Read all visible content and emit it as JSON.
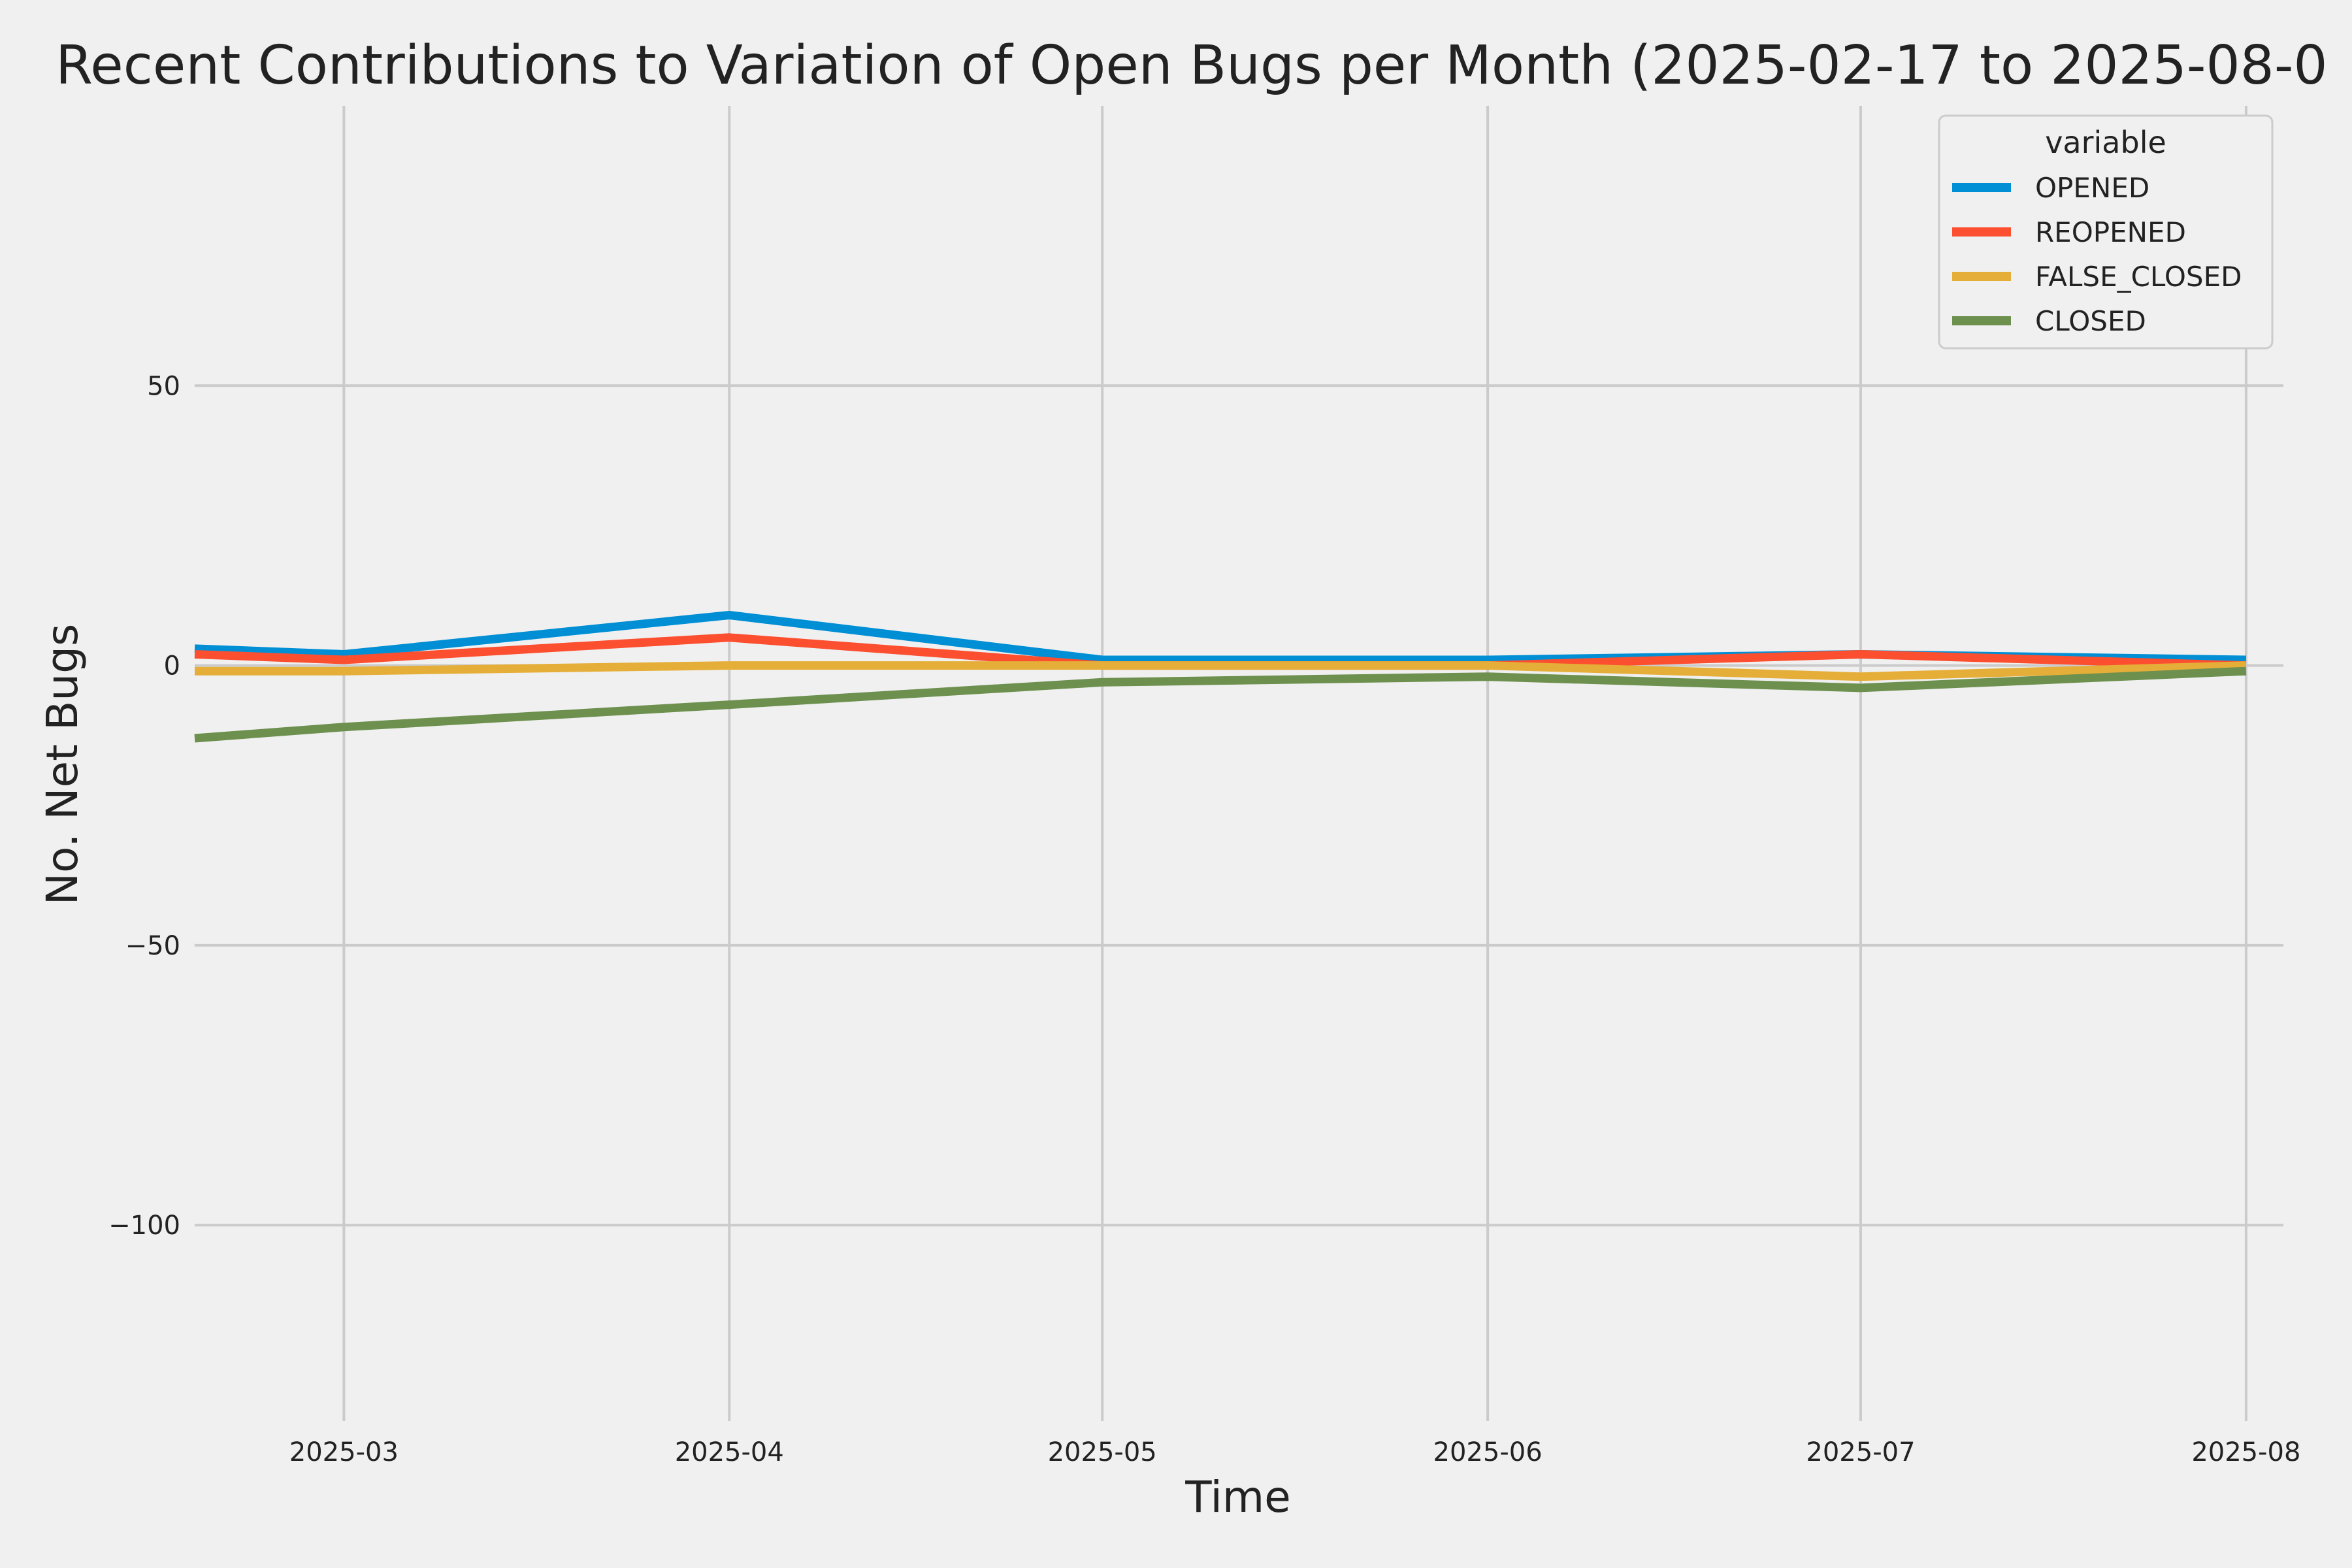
{
  "chart_data": {
    "type": "line",
    "title": "Recent Contributions to Variation of Open Bugs per Month (2025-02-17 to 2025-08-0",
    "xlabel": "Time",
    "ylabel": "No. Net Bugs",
    "x": [
      "2025-02-17",
      "2025-03-01",
      "2025-04-01",
      "2025-05-01",
      "2025-06-01",
      "2025-07-01",
      "2025-08-01"
    ],
    "xlim": [
      "2025-02-17",
      "2025-08-04"
    ],
    "ylim": [
      -135,
      100
    ],
    "x_ticks": [
      "2025-03-01",
      "2025-04-01",
      "2025-05-01",
      "2025-06-01",
      "2025-07-01",
      "2025-08-01"
    ],
    "x_tick_labels": [
      "2025-03",
      "2025-04",
      "2025-05",
      "2025-06",
      "2025-07",
      "2025-08"
    ],
    "y_ticks": [
      50,
      0,
      -50,
      -100
    ],
    "y_tick_labels": [
      "50",
      "0",
      "−50",
      "−100"
    ],
    "grid": true,
    "legend": {
      "title": "variable",
      "placement": "top-right"
    },
    "series": [
      {
        "name": "OPENED",
        "color": "#008fd5",
        "values": [
          3,
          2,
          9,
          1,
          1,
          2,
          1
        ]
      },
      {
        "name": "REOPENED",
        "color": "#fc4f30",
        "values": [
          2,
          1,
          5,
          0,
          0,
          2,
          0
        ]
      },
      {
        "name": "FALSE_CLOSED",
        "color": "#e5ae38",
        "values": [
          -1,
          -1,
          0,
          0,
          0,
          -2,
          0
        ]
      },
      {
        "name": "CLOSED",
        "color": "#6d904f",
        "values": [
          -13,
          -11,
          -7,
          -3,
          -2,
          -4,
          -1
        ]
      }
    ]
  }
}
